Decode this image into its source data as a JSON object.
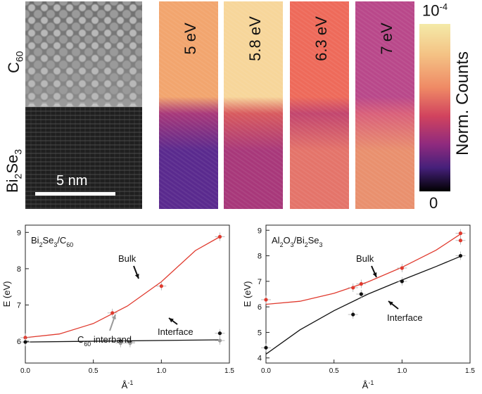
{
  "top": {
    "stem_labels": {
      "c60_main": "C",
      "c60_sub": "60",
      "bi2se3_a": "Bi",
      "bi2se3_sub1": "2",
      "bi2se3_b": "Se",
      "bi2se3_sub2": "3",
      "scale_bar": "5 nm"
    },
    "maps": [
      {
        "label": "5 eV",
        "top": "#f2a56e",
        "mid": "#a8387a",
        "bottom": "#5a2a8e"
      },
      {
        "label": "5.8 eV",
        "top": "#f7d69a",
        "mid": "#d85a5e",
        "bottom": "#a8387a"
      },
      {
        "label": "6.3 eV",
        "top": "#ee6a5a",
        "mid": "#c2456e",
        "bottom": "#e4746a"
      },
      {
        "label": "7 eV",
        "top": "#b9488a",
        "mid": "#d9607a",
        "bottom": "#e9906e"
      }
    ],
    "colorbar": {
      "label": "Norm. Counts",
      "top_main": "10",
      "top_exp": "-4",
      "bottom": "0"
    }
  },
  "chart_data": [
    {
      "type": "scatter",
      "title": "Bi2Se3/C60",
      "title_parts": {
        "a": "Bi",
        "s1": "2",
        "b": "Se",
        "s2": "3",
        "c": "/C",
        "s3": "60"
      },
      "xlabel": "Å",
      "xlabel_exp": "-1",
      "ylabel": "E (eV)",
      "xlim": [
        0,
        1.5
      ],
      "ylim": [
        5.4,
        9.2
      ],
      "xticks": [
        "0.0",
        "0.5",
        "1.0",
        "1.5"
      ],
      "yticks": [
        "6",
        "7",
        "8",
        "9"
      ],
      "series": [
        {
          "name": "Bulk",
          "color": "#e03a2e",
          "points": [
            [
              0.0,
              6.1
            ],
            [
              0.64,
              6.78
            ],
            [
              1.0,
              7.52
            ],
            [
              1.43,
              8.88
            ]
          ],
          "fit": [
            [
              0,
              6.1
            ],
            [
              0.25,
              6.2
            ],
            [
              0.5,
              6.49
            ],
            [
              0.75,
              6.97
            ],
            [
              1.0,
              7.64
            ],
            [
              1.25,
              8.5
            ],
            [
              1.43,
              8.88
            ]
          ]
        },
        {
          "name": "Interface",
          "color": "#111111",
          "points": [
            [
              0.0,
              5.98
            ],
            [
              0.7,
              6.0
            ],
            [
              0.77,
              5.98
            ],
            [
              1.43,
              6.22
            ]
          ],
          "fit": [
            [
              0,
              5.98
            ],
            [
              1.43,
              6.04
            ]
          ]
        },
        {
          "name": "C60 interband",
          "color": "#999999",
          "points": [
            [
              0.7,
              5.95
            ],
            [
              0.77,
              5.95
            ],
            [
              1.43,
              6.02
            ]
          ]
        }
      ],
      "annotations": {
        "bulk": "Bulk",
        "interface": "Interface",
        "c60_pre": "C",
        "c60_sub": "60",
        "c60_post": " interband"
      }
    },
    {
      "type": "scatter",
      "title": "Al2O3/Bi2Se3",
      "title_parts": {
        "a": "Al",
        "s1": "2",
        "b": "O",
        "s2": "3",
        "c": "/Bi",
        "s3": "2",
        "d": "Se",
        "s4": "3"
      },
      "xlabel": "Å",
      "xlabel_exp": "-1",
      "ylabel": "E (eV)",
      "xlim": [
        0,
        1.5
      ],
      "ylim": [
        3.8,
        9.2
      ],
      "xticks": [
        "0.0",
        "0.5",
        "1.0",
        "1.5"
      ],
      "yticks": [
        "4",
        "5",
        "6",
        "7",
        "8",
        "9"
      ],
      "series": [
        {
          "name": "Bulk",
          "color": "#e03a2e",
          "points": [
            [
              0.0,
              6.28
            ],
            [
              0.64,
              6.75
            ],
            [
              0.7,
              6.9
            ],
            [
              1.0,
              7.52
            ],
            [
              1.43,
              8.6
            ],
            [
              1.43,
              8.88
            ]
          ],
          "fit": [
            [
              0,
              6.1
            ],
            [
              0.25,
              6.22
            ],
            [
              0.5,
              6.53
            ],
            [
              0.75,
              6.98
            ],
            [
              1.0,
              7.55
            ],
            [
              1.25,
              8.22
            ],
            [
              1.43,
              8.85
            ]
          ]
        },
        {
          "name": "Interface",
          "color": "#111111",
          "points": [
            [
              0.0,
              4.4
            ],
            [
              0.64,
              5.7
            ],
            [
              0.7,
              6.5
            ],
            [
              1.0,
              7.0
            ],
            [
              1.43,
              8.0
            ]
          ],
          "fit": [
            [
              0,
              4.15
            ],
            [
              0.25,
              5.1
            ],
            [
              0.5,
              5.85
            ],
            [
              0.75,
              6.5
            ],
            [
              1.0,
              7.05
            ],
            [
              1.25,
              7.58
            ],
            [
              1.43,
              7.98
            ]
          ]
        }
      ],
      "annotations": {
        "bulk": "Bulk",
        "interface": "Interface"
      }
    }
  ]
}
